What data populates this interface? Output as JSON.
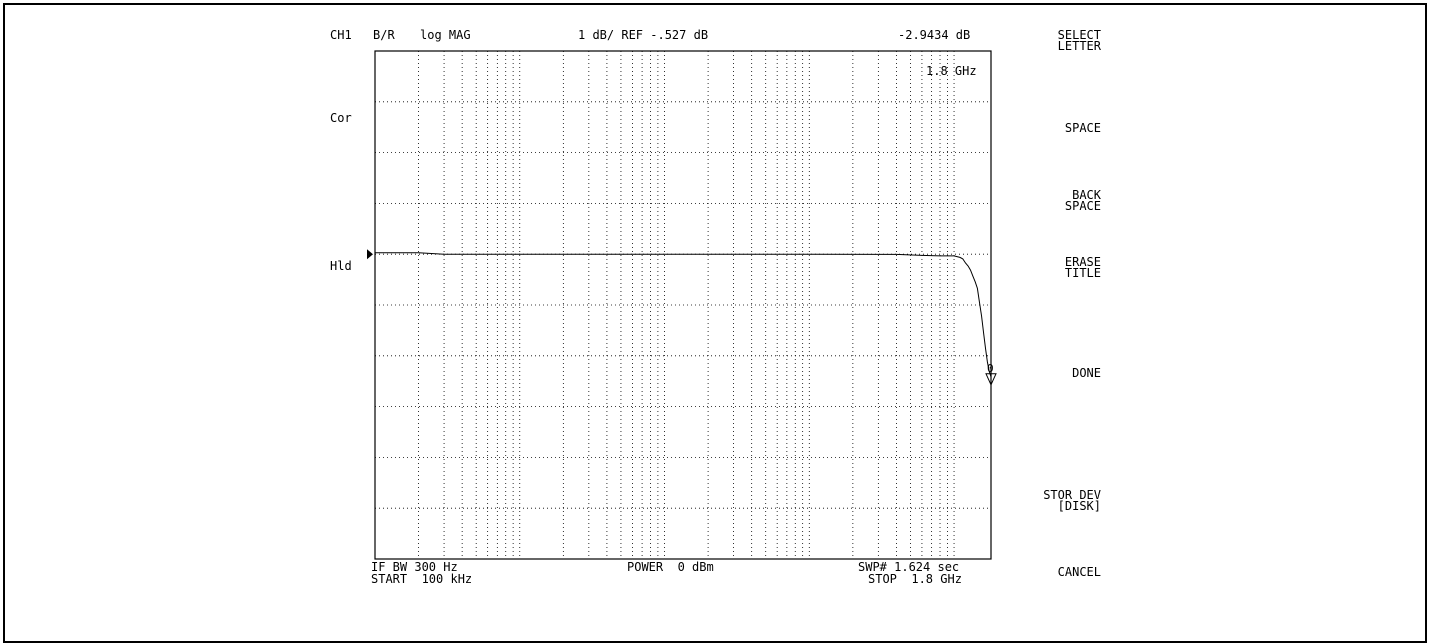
{
  "header": {
    "channel": "CH1",
    "measurement": "B/R",
    "format": "log MAG",
    "scale": "1 dB/ REF -.527 dB",
    "marker_value": "-2.9434 dB"
  },
  "marker": {
    "frequency": "1.8 GHz",
    "label": "0"
  },
  "status": {
    "correction": "Cor",
    "hold": "Hld"
  },
  "footer": {
    "if_bw": "IF BW 300 Hz",
    "start": "START  100 kHz",
    "power": "POWER  0 dBm",
    "sweep": "SWP# 1.624 sec",
    "stop": "STOP  1.8 GHz"
  },
  "softkeys": [
    {
      "label": "SELECT\nLETTER"
    },
    {
      "label": "SPACE"
    },
    {
      "label": "BACK\nSPACE"
    },
    {
      "label": "ERASE\nTITLE"
    },
    {
      "label": "DONE"
    },
    {
      "label": "STOR DEV\n[DISK]"
    },
    {
      "label": "CANCEL"
    }
  ],
  "chart_data": {
    "type": "line",
    "xscale": "log",
    "xlim": [
      0.0001,
      1.8
    ],
    "xunit": "GHz",
    "ydivisions": 10,
    "scale_db_per_div": 1,
    "ref_value_db": -0.527,
    "ylim": [
      -6.527,
      3.473
    ],
    "grid": true,
    "series": [
      {
        "x": [
          0.0001,
          0.0002,
          0.0003,
          0.1,
          0.4,
          0.6,
          0.8,
          1.0,
          1.1,
          1.15,
          1.2,
          1.25,
          1.3,
          1.35,
          1.4,
          1.45,
          1.5,
          1.55,
          1.6,
          1.65,
          1.7,
          1.75,
          1.8
        ],
        "y": [
          -0.5,
          -0.5,
          -0.527,
          -0.527,
          -0.53,
          -0.55,
          -0.56,
          -0.56,
          -0.59,
          -0.62,
          -0.7,
          -0.76,
          -0.84,
          -0.96,
          -1.07,
          -1.2,
          -1.48,
          -1.75,
          -2.08,
          -2.38,
          -2.65,
          -2.83,
          -2.94
        ]
      }
    ]
  }
}
